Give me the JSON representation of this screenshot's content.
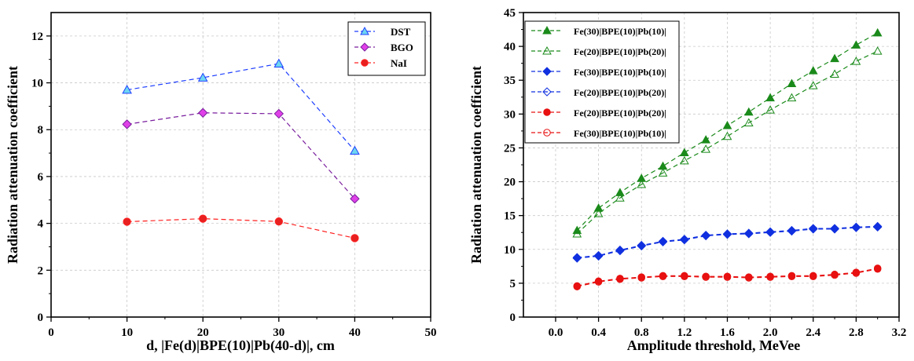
{
  "chart_data": [
    {
      "type": "line",
      "title": "",
      "xlabel": "d, |Fe(d)|BPE(10)|Pb(40-d)|, cm",
      "ylabel": "Radiation attenuation coefficient",
      "xlim": [
        0,
        50
      ],
      "ylim": [
        0,
        13
      ],
      "xticks": [
        0,
        10,
        20,
        30,
        40,
        50
      ],
      "yticks": [
        0,
        2,
        4,
        6,
        8,
        10,
        12
      ],
      "grid": true,
      "legend_position": "top-right",
      "x": [
        10,
        20,
        30,
        40
      ],
      "series": [
        {
          "name": "DST",
          "values": [
            9.7,
            10.22,
            10.82,
            7.1
          ],
          "color": "#1f3fff",
          "marker_fill": "#6ed6f0",
          "marker": "triangle"
        },
        {
          "name": "BGO",
          "values": [
            8.23,
            8.72,
            8.68,
            5.05
          ],
          "color": "#7a1f9e",
          "marker_fill": "#e040e8",
          "marker": "diamond"
        },
        {
          "name": "NaI",
          "values": [
            4.07,
            4.2,
            4.08,
            3.37
          ],
          "color": "#ff2020",
          "marker_fill": "#e82020",
          "marker": "circle"
        }
      ]
    },
    {
      "type": "line",
      "title": "",
      "xlabel": "Amplitude threshold, MeVee",
      "ylabel": "Radiation attenuation coefficient",
      "xlim": [
        -0.3,
        3.2
      ],
      "ylim": [
        0,
        45
      ],
      "xticks": [
        0.0,
        0.4,
        0.8,
        1.2,
        1.6,
        2.0,
        2.4,
        2.8,
        3.2
      ],
      "xtick_labels": [
        "0.0",
        "0.4",
        "0.8",
        "1.2",
        "1.6",
        "2.0",
        "2.4",
        "2.8",
        "3.2"
      ],
      "yticks": [
        0,
        5,
        10,
        15,
        20,
        25,
        30,
        35,
        40,
        45
      ],
      "grid": true,
      "legend_position": "top-left",
      "x": [
        0.2,
        0.4,
        0.6,
        0.8,
        1.0,
        1.2,
        1.4,
        1.6,
        1.8,
        2.0,
        2.2,
        2.4,
        2.6,
        2.8,
        3.0
      ],
      "series": [
        {
          "name": "Fe(30)|BPE(10)|Pb(10)|",
          "values": [
            12.8,
            16.1,
            18.4,
            20.5,
            22.3,
            24.3,
            26.2,
            28.3,
            30.3,
            32.4,
            34.5,
            36.4,
            38.2,
            40.2,
            42.0
          ],
          "color": "#1a8a1a",
          "marker": "triangle",
          "filled": true
        },
        {
          "name": "Fe(20)|BPE(10)|Pb(20)|",
          "values": [
            12.3,
            15.3,
            17.6,
            19.6,
            21.3,
            23.1,
            24.8,
            26.7,
            28.7,
            30.6,
            32.4,
            34.2,
            35.9,
            37.8,
            39.3
          ],
          "color": "#1a8a1a",
          "marker": "triangle",
          "filled": false
        },
        {
          "name": "Fe(30)|BPE(10)|Pb(10)|",
          "values": [
            8.8,
            9.1,
            9.9,
            10.6,
            11.2,
            11.5,
            12.1,
            12.3,
            12.4,
            12.6,
            12.8,
            13.1,
            13.1,
            13.3,
            13.4
          ],
          "color": "#1030e0",
          "marker": "diamond",
          "filled": true
        },
        {
          "name": "Fe(20)|BPE(10)|Pb(20)|",
          "values": [
            8.7,
            9.0,
            9.8,
            10.5,
            11.1,
            11.4,
            12.0,
            12.2,
            12.3,
            12.5,
            12.7,
            13.0,
            13.0,
            13.2,
            13.3
          ],
          "color": "#1030e0",
          "marker": "diamond",
          "filled": false
        },
        {
          "name": "Fe(20)|BPE(10)|Pb(20)|",
          "values": [
            4.6,
            5.3,
            5.7,
            5.9,
            6.1,
            6.1,
            6.0,
            6.0,
            5.9,
            6.0,
            6.1,
            6.1,
            6.3,
            6.6,
            7.2
          ],
          "color": "#e81010",
          "marker": "circle",
          "filled": true
        },
        {
          "name": "Fe(30)|BPE(10)|Pb(10)|",
          "values": [
            4.5,
            5.2,
            5.6,
            5.8,
            6.0,
            6.0,
            5.9,
            5.9,
            5.8,
            5.9,
            6.0,
            6.0,
            6.2,
            6.5,
            7.1
          ],
          "color": "#e81010",
          "marker": "circle",
          "filled": false
        }
      ]
    }
  ]
}
